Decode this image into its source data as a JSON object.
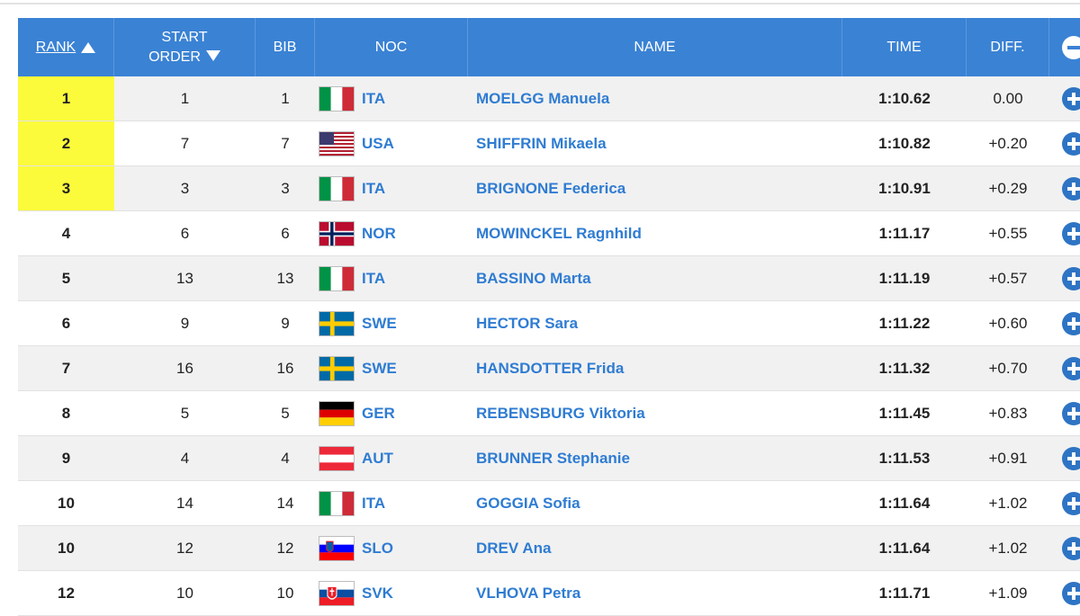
{
  "header": {
    "rank": "RANK",
    "start_order_line1": "START",
    "start_order_line2": "ORDER",
    "bib": "BIB",
    "noc": "NOC",
    "name": "NAME",
    "time": "TIME",
    "diff": "DIFF."
  },
  "colors": {
    "header_bg": "#3a82d4",
    "medal_highlight": "#fbfb3c",
    "link_blue": "#2f7cd2",
    "odd_row": "#f1f1f1",
    "even_row": "#ffffff"
  },
  "icons": {
    "collapse_all": "minus-circle-icon",
    "expand_row": "plus-circle-icon",
    "sort_ascending": "triangle-up-icon",
    "sort_descending": "triangle-down-icon"
  },
  "rows": [
    {
      "rank": "1",
      "start": "1",
      "bib": "1",
      "noc": "ITA",
      "name": "MOELGG Manuela",
      "time": "1:10.62",
      "diff": "0.00"
    },
    {
      "rank": "2",
      "start": "7",
      "bib": "7",
      "noc": "USA",
      "name": "SHIFFRIN Mikaela",
      "time": "1:10.82",
      "diff": "+0.20"
    },
    {
      "rank": "3",
      "start": "3",
      "bib": "3",
      "noc": "ITA",
      "name": "BRIGNONE Federica",
      "time": "1:10.91",
      "diff": "+0.29"
    },
    {
      "rank": "4",
      "start": "6",
      "bib": "6",
      "noc": "NOR",
      "name": "MOWINCKEL Ragnhild",
      "time": "1:11.17",
      "diff": "+0.55"
    },
    {
      "rank": "5",
      "start": "13",
      "bib": "13",
      "noc": "ITA",
      "name": "BASSINO Marta",
      "time": "1:11.19",
      "diff": "+0.57"
    },
    {
      "rank": "6",
      "start": "9",
      "bib": "9",
      "noc": "SWE",
      "name": "HECTOR Sara",
      "time": "1:11.22",
      "diff": "+0.60"
    },
    {
      "rank": "7",
      "start": "16",
      "bib": "16",
      "noc": "SWE",
      "name": "HANSDOTTER Frida",
      "time": "1:11.32",
      "diff": "+0.70"
    },
    {
      "rank": "8",
      "start": "5",
      "bib": "5",
      "noc": "GER",
      "name": "REBENSBURG Viktoria",
      "time": "1:11.45",
      "diff": "+0.83"
    },
    {
      "rank": "9",
      "start": "4",
      "bib": "4",
      "noc": "AUT",
      "name": "BRUNNER Stephanie",
      "time": "1:11.53",
      "diff": "+0.91"
    },
    {
      "rank": "10",
      "start": "14",
      "bib": "14",
      "noc": "ITA",
      "name": "GOGGIA Sofia",
      "time": "1:11.64",
      "diff": "+1.02"
    },
    {
      "rank": "10",
      "start": "12",
      "bib": "12",
      "noc": "SLO",
      "name": "DREV Ana",
      "time": "1:11.64",
      "diff": "+1.02"
    },
    {
      "rank": "12",
      "start": "10",
      "bib": "10",
      "noc": "SVK",
      "name": "VLHOVA Petra",
      "time": "1:11.71",
      "diff": "+1.09"
    }
  ]
}
